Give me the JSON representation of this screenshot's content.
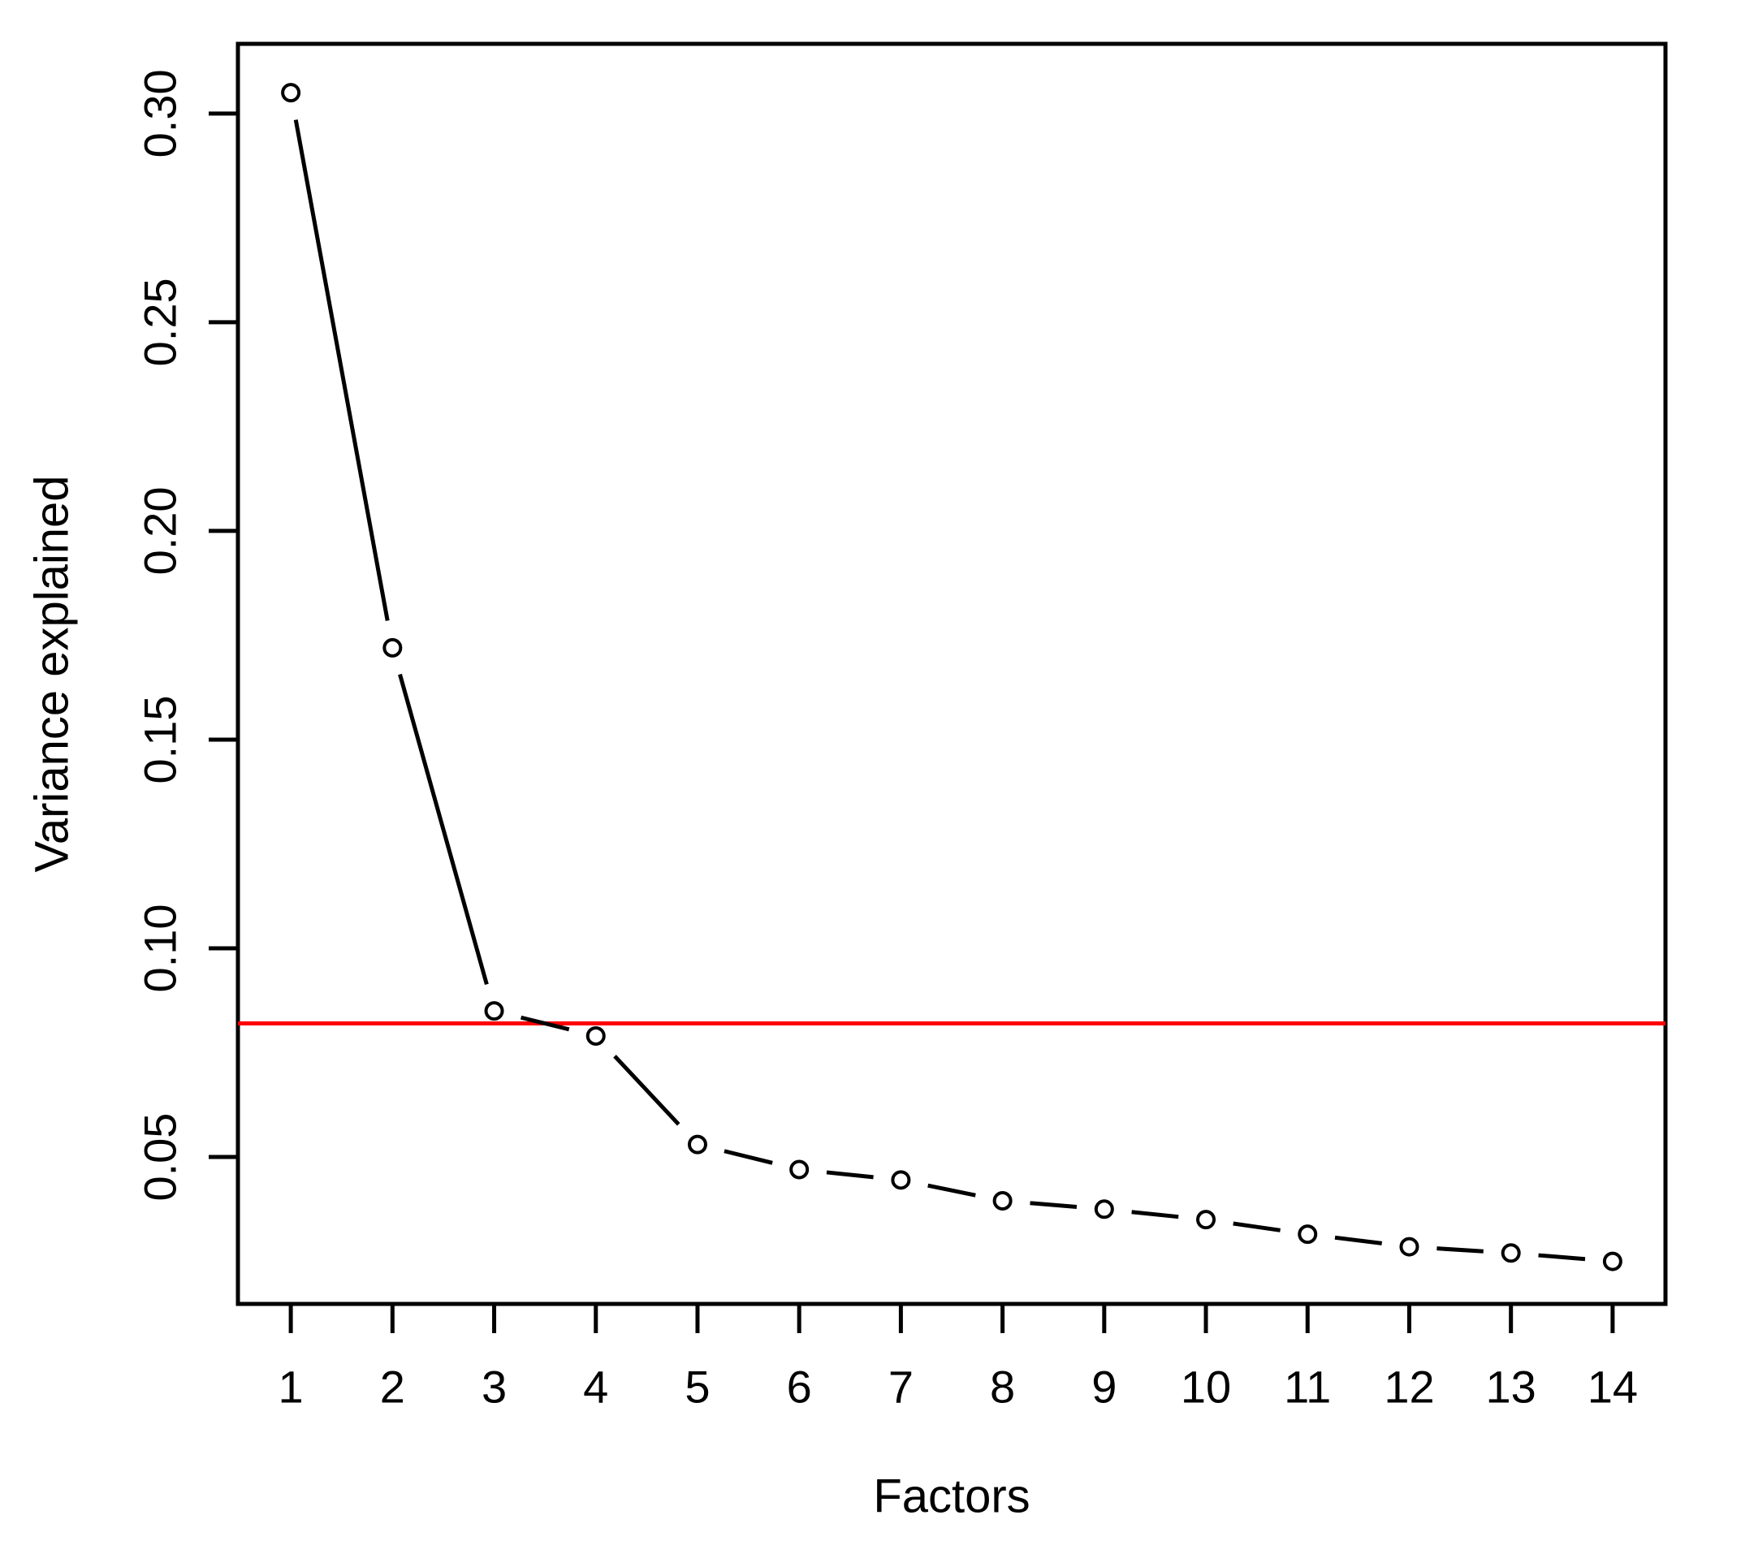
{
  "chart_data": {
    "type": "line",
    "title": "",
    "xlabel": "Factors",
    "ylabel": "Variance explained",
    "x": [
      1,
      2,
      3,
      4,
      5,
      6,
      7,
      8,
      9,
      10,
      11,
      12,
      13,
      14
    ],
    "values": [
      0.305,
      0.172,
      0.085,
      0.079,
      0.053,
      0.047,
      0.0445,
      0.0395,
      0.0375,
      0.035,
      0.0315,
      0.0285,
      0.027,
      0.025
    ],
    "reference_line": {
      "value": 0.082,
      "color": "#ff0000",
      "orientation": "horizontal"
    },
    "x_tick_labels": [
      "1",
      "2",
      "3",
      "4",
      "5",
      "6",
      "7",
      "8",
      "9",
      "10",
      "11",
      "12",
      "13",
      "14"
    ],
    "y_tick_values": [
      0.05,
      0.1,
      0.15,
      0.2,
      0.25,
      0.3
    ],
    "y_tick_labels": [
      "0.05",
      "0.10",
      "0.15",
      "0.20",
      "0.25",
      "0.30"
    ],
    "xlim": [
      0.48,
      14.52
    ],
    "ylim": [
      0.0148,
      0.3167
    ],
    "grid": false,
    "legend": false,
    "point_style": "open-circle",
    "line_style": "segments-with-gaps-at-points",
    "line_color": "#000000",
    "background": "#ffffff"
  }
}
